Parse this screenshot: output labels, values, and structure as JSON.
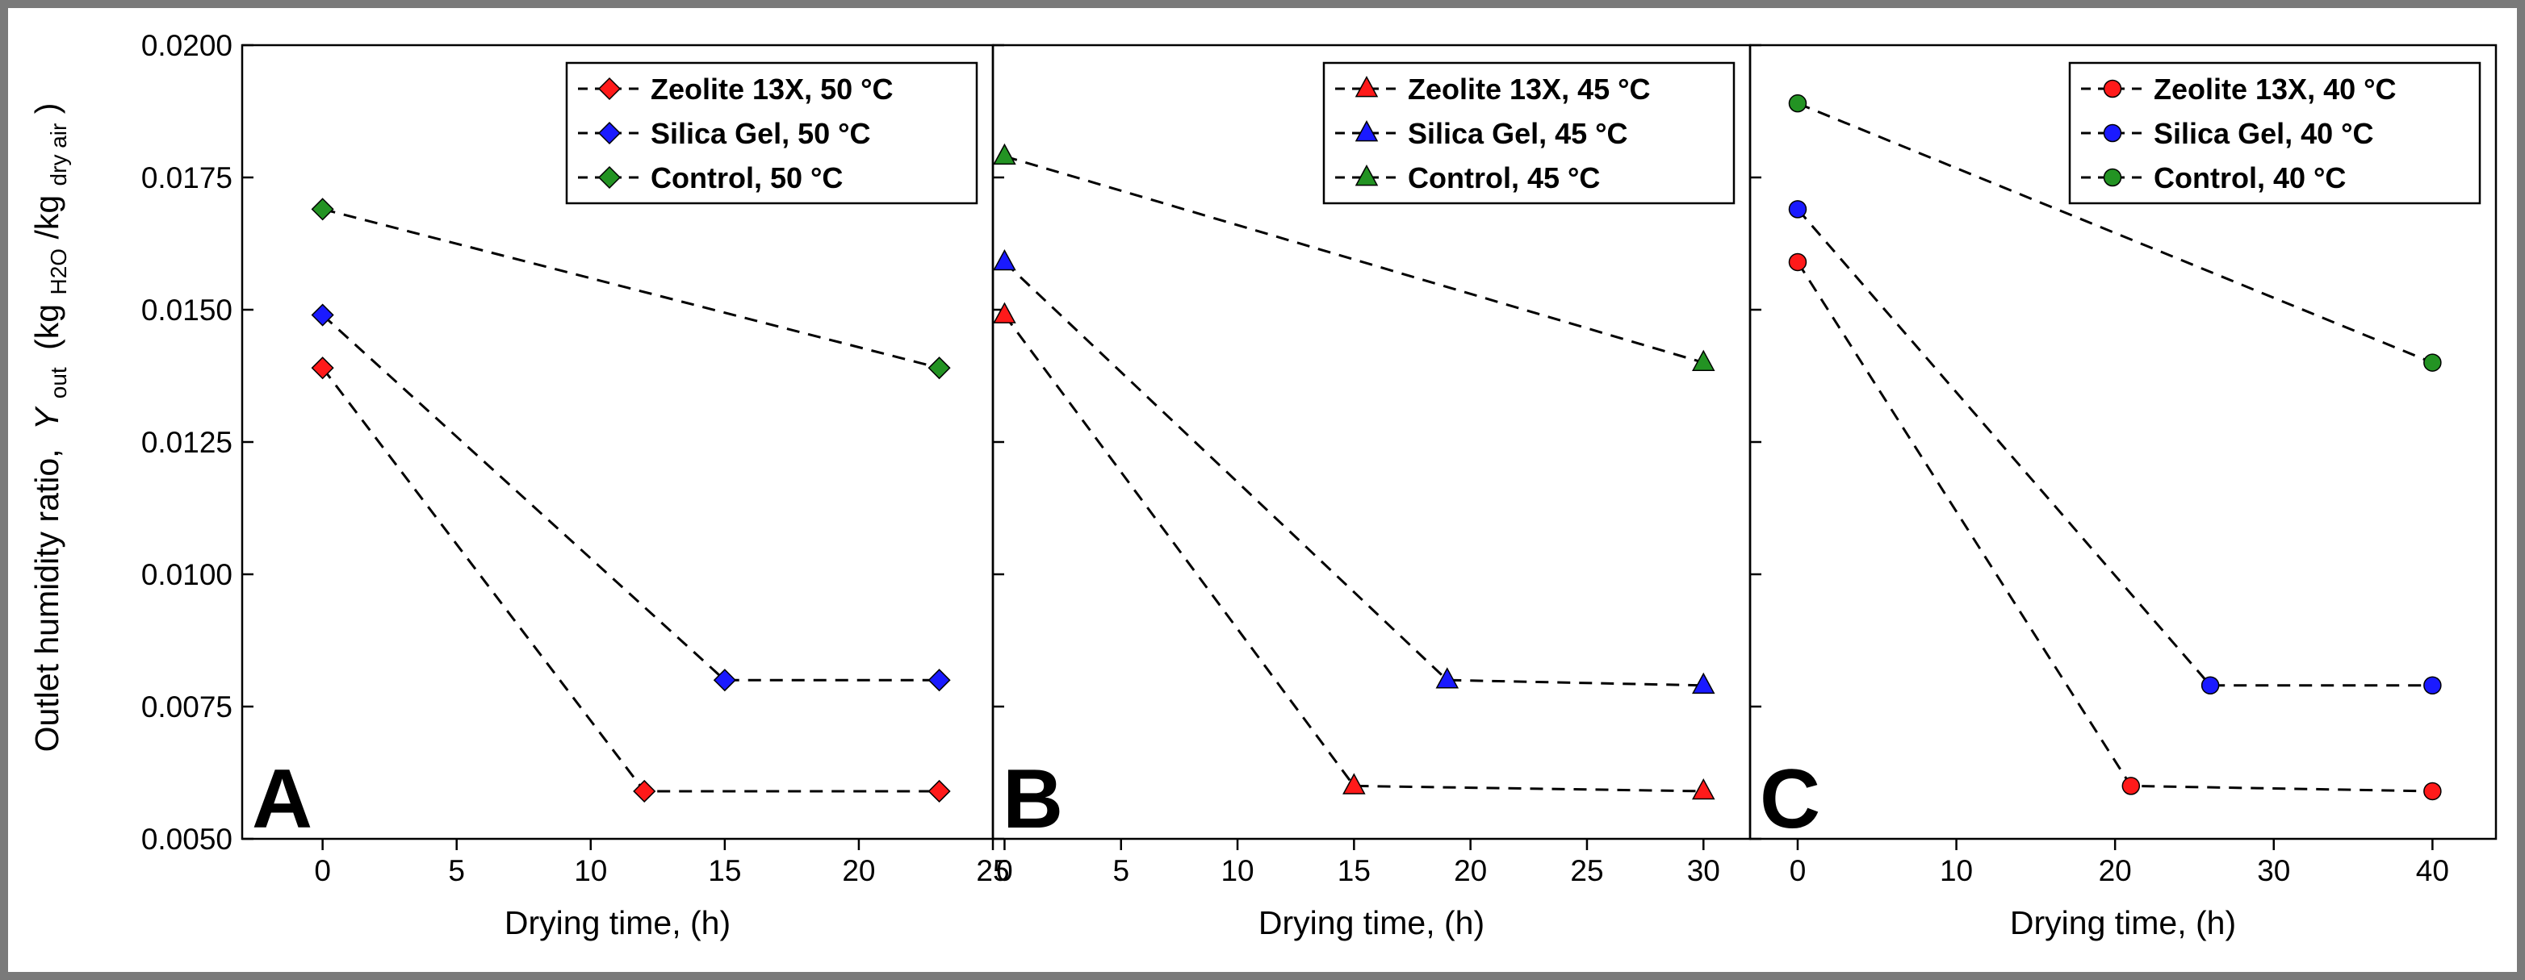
{
  "figure": {
    "ylabel": {
      "prefix": "Outlet humidity ratio,",
      "symbol": "Y",
      "symbol_sub": "out",
      "open": "(kg",
      "num_sub": "H2O",
      "slash": "/kg",
      "den_sub": "dry air",
      "close": ")"
    }
  },
  "colors": {
    "zeolite": "#ff1a1a",
    "silica": "#1a1aff",
    "control": "#239323"
  },
  "chart_data": [
    {
      "type": "line",
      "panel_label": "A",
      "xlabel": "Drying time, (h)",
      "xlim": [
        -3,
        25
      ],
      "xticks": [
        0,
        5,
        10,
        15,
        20,
        25
      ],
      "ylim": [
        0.005,
        0.02
      ],
      "yticks": [
        "0.0050",
        "0.0075",
        "0.0100",
        "0.0125",
        "0.0150",
        "0.0175",
        "0.0200"
      ],
      "marker": "diamond",
      "legend_position": "top-right",
      "series": [
        {
          "name": "Zeolite 13X, 50 °C",
          "color_key": "zeolite",
          "x": [
            0,
            12,
            23
          ],
          "y": [
            0.0139,
            0.0059,
            0.0059
          ]
        },
        {
          "name": "Silica Gel, 50 °C",
          "color_key": "silica",
          "x": [
            0,
            15,
            23
          ],
          "y": [
            0.0149,
            0.008,
            0.008
          ]
        },
        {
          "name": "Control, 50 °C",
          "color_key": "control",
          "x": [
            0,
            23
          ],
          "y": [
            0.0169,
            0.0139
          ]
        }
      ]
    },
    {
      "type": "line",
      "panel_label": "B",
      "xlabel": "Drying time, (h)",
      "xlim": [
        -0.5,
        32
      ],
      "xticks": [
        0,
        5,
        10,
        15,
        20,
        25,
        30
      ],
      "ylim": [
        0.005,
        0.02
      ],
      "marker": "triangle",
      "legend_position": "top-right",
      "series": [
        {
          "name": "Zeolite 13X, 45 °C",
          "color_key": "zeolite",
          "x": [
            0,
            15,
            30
          ],
          "y": [
            0.0149,
            0.006,
            0.0059
          ]
        },
        {
          "name": "Silica Gel, 45 °C",
          "color_key": "silica",
          "x": [
            0,
            19,
            30
          ],
          "y": [
            0.0159,
            0.008,
            0.0079
          ]
        },
        {
          "name": "Control, 45 °C",
          "color_key": "control",
          "x": [
            0,
            30
          ],
          "y": [
            0.0179,
            0.014
          ]
        }
      ]
    },
    {
      "type": "line",
      "panel_label": "C",
      "xlabel": "Drying time, (h)",
      "xlim": [
        -3,
        44
      ],
      "xticks": [
        0,
        10,
        20,
        30,
        40
      ],
      "ylim": [
        0.005,
        0.02
      ],
      "marker": "circle",
      "legend_position": "top-right",
      "series": [
        {
          "name": "Zeolite 13X, 40 °C",
          "color_key": "zeolite",
          "x": [
            0,
            21,
            40
          ],
          "y": [
            0.0159,
            0.006,
            0.0059
          ]
        },
        {
          "name": "Silica Gel, 40 °C",
          "color_key": "silica",
          "x": [
            0,
            26,
            40
          ],
          "y": [
            0.0169,
            0.0079,
            0.0079
          ]
        },
        {
          "name": "Control, 40 °C",
          "color_key": "control",
          "x": [
            0,
            40
          ],
          "y": [
            0.0189,
            0.014
          ]
        }
      ]
    }
  ]
}
